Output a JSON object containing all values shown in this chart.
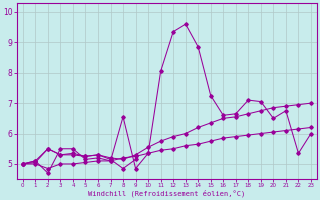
{
  "xlabel": "Windchill (Refroidissement éolien,°C)",
  "background_color": "#c8ecec",
  "line_color": "#990099",
  "grid_color": "#b0c8c8",
  "x_ticks": [
    0,
    1,
    2,
    3,
    4,
    5,
    6,
    7,
    8,
    9,
    10,
    11,
    12,
    13,
    14,
    15,
    16,
    17,
    18,
    19,
    20,
    21,
    22,
    23
  ],
  "y_ticks": [
    5,
    6,
    7,
    8,
    9,
    10
  ],
  "ylim": [
    4.5,
    10.3
  ],
  "xlim": [
    -0.5,
    23.5
  ],
  "line1": [
    5.0,
    5.1,
    4.7,
    5.5,
    5.5,
    5.15,
    5.2,
    5.1,
    6.55,
    4.85,
    5.35,
    8.05,
    9.35,
    9.6,
    8.85,
    7.25,
    6.6,
    6.65,
    7.1,
    7.05,
    6.5,
    6.75,
    5.35,
    6.0
  ],
  "line2": [
    5.0,
    5.0,
    4.85,
    5.0,
    5.0,
    5.05,
    5.1,
    5.1,
    5.2,
    5.25,
    5.35,
    5.45,
    5.5,
    5.6,
    5.65,
    5.75,
    5.85,
    5.9,
    5.95,
    6.0,
    6.05,
    6.1,
    6.15,
    6.2
  ],
  "line3": [
    5.0,
    5.05,
    5.5,
    5.3,
    5.35,
    5.25,
    5.3,
    5.2,
    5.15,
    5.3,
    5.55,
    5.75,
    5.9,
    6.0,
    6.2,
    6.35,
    6.5,
    6.55,
    6.65,
    6.75,
    6.85,
    6.9,
    6.95,
    7.0
  ],
  "line4_x": [
    0,
    1,
    2,
    3,
    4,
    5,
    6,
    7,
    8,
    9
  ],
  "line4_y": [
    5.0,
    5.1,
    5.5,
    5.3,
    5.3,
    5.25,
    5.3,
    5.15,
    4.85,
    5.15
  ]
}
